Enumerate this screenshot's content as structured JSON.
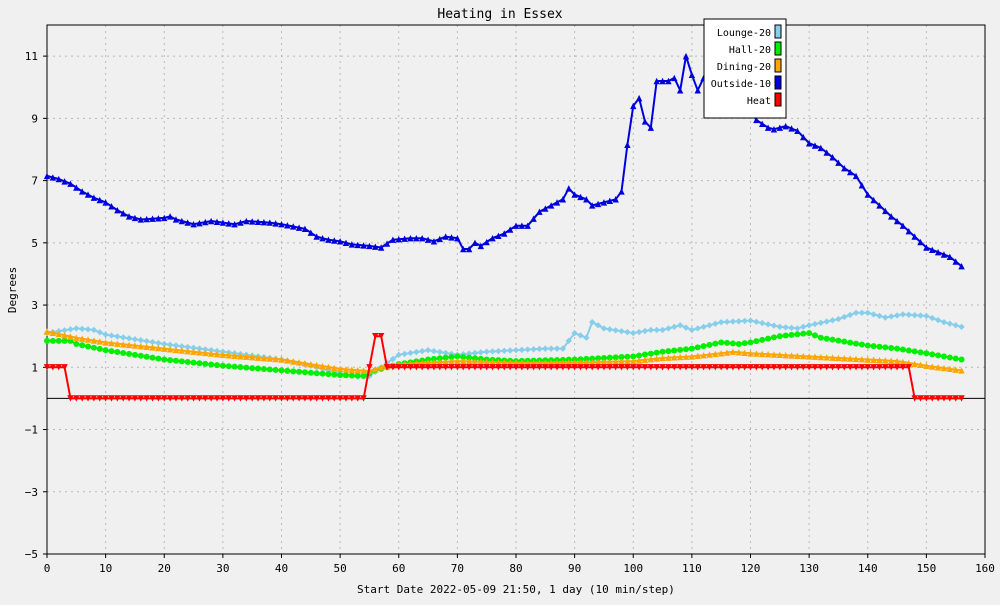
{
  "chart_data": {
    "type": "line",
    "title": "Heating in Essex",
    "xlabel": "Start Date 2022-05-09 21:50, 1 day (10 min/step)",
    "ylabel": "Degrees",
    "xlim": [
      0,
      160
    ],
    "ylim": [
      -5,
      12
    ],
    "x_ticks": [
      0,
      10,
      20,
      30,
      40,
      50,
      60,
      70,
      80,
      90,
      100,
      110,
      120,
      130,
      140,
      150,
      160
    ],
    "y_ticks": [
      -5,
      -3,
      -1,
      1,
      3,
      5,
      7,
      9,
      11
    ],
    "grid": true,
    "legend_position": "top-right",
    "background": "#f0f0f0",
    "series": [
      {
        "name": "Lounge-20",
        "color": "#87ceeb",
        "marker": "diamond",
        "points": [
          [
            0,
            2.1
          ],
          [
            5,
            2.25
          ],
          [
            8,
            2.2
          ],
          [
            10,
            2.05
          ],
          [
            20,
            1.75
          ],
          [
            30,
            1.5
          ],
          [
            40,
            1.25
          ],
          [
            45,
            1.05
          ],
          [
            50,
            0.8
          ],
          [
            53,
            0.7
          ],
          [
            55,
            0.72
          ],
          [
            57,
            1.0
          ],
          [
            60,
            1.4
          ],
          [
            65,
            1.55
          ],
          [
            70,
            1.4
          ],
          [
            75,
            1.5
          ],
          [
            80,
            1.55
          ],
          [
            85,
            1.6
          ],
          [
            88,
            1.6
          ],
          [
            90,
            2.1
          ],
          [
            92,
            1.95
          ],
          [
            93,
            2.45
          ],
          [
            95,
            2.25
          ],
          [
            100,
            2.1
          ],
          [
            103,
            2.2
          ],
          [
            105,
            2.2
          ],
          [
            108,
            2.35
          ],
          [
            110,
            2.2
          ],
          [
            115,
            2.45
          ],
          [
            120,
            2.5
          ],
          [
            125,
            2.3
          ],
          [
            128,
            2.25
          ],
          [
            130,
            2.35
          ],
          [
            135,
            2.55
          ],
          [
            138,
            2.75
          ],
          [
            140,
            2.75
          ],
          [
            143,
            2.6
          ],
          [
            146,
            2.7
          ],
          [
            150,
            2.65
          ],
          [
            153,
            2.45
          ],
          [
            156,
            2.3
          ]
        ]
      },
      {
        "name": "Hall-20",
        "color": "#00ee00",
        "marker": "circle",
        "points": [
          [
            0,
            1.85
          ],
          [
            4,
            1.85
          ],
          [
            5,
            1.75
          ],
          [
            10,
            1.55
          ],
          [
            20,
            1.25
          ],
          [
            30,
            1.05
          ],
          [
            40,
            0.9
          ],
          [
            50,
            0.75
          ],
          [
            54,
            0.72
          ],
          [
            56,
            0.9
          ],
          [
            60,
            1.1
          ],
          [
            65,
            1.25
          ],
          [
            70,
            1.35
          ],
          [
            75,
            1.25
          ],
          [
            80,
            1.2
          ],
          [
            90,
            1.25
          ],
          [
            100,
            1.35
          ],
          [
            105,
            1.5
          ],
          [
            110,
            1.6
          ],
          [
            115,
            1.8
          ],
          [
            118,
            1.75
          ],
          [
            120,
            1.8
          ],
          [
            125,
            2.0
          ],
          [
            130,
            2.1
          ],
          [
            132,
            1.95
          ],
          [
            140,
            1.7
          ],
          [
            145,
            1.6
          ],
          [
            150,
            1.45
          ],
          [
            156,
            1.25
          ]
        ]
      },
      {
        "name": "Dining-20",
        "color": "#ffa500",
        "marker": "triangle-up",
        "points": [
          [
            0,
            2.15
          ],
          [
            5,
            1.95
          ],
          [
            10,
            1.8
          ],
          [
            20,
            1.6
          ],
          [
            30,
            1.4
          ],
          [
            40,
            1.25
          ],
          [
            45,
            1.1
          ],
          [
            50,
            0.95
          ],
          [
            55,
            0.88
          ],
          [
            57,
            1.0
          ],
          [
            60,
            1.1
          ],
          [
            65,
            1.15
          ],
          [
            70,
            1.2
          ],
          [
            80,
            1.15
          ],
          [
            90,
            1.15
          ],
          [
            100,
            1.2
          ],
          [
            105,
            1.3
          ],
          [
            110,
            1.35
          ],
          [
            115,
            1.45
          ],
          [
            117,
            1.5
          ],
          [
            120,
            1.45
          ],
          [
            125,
            1.4
          ],
          [
            130,
            1.35
          ],
          [
            135,
            1.3
          ],
          [
            140,
            1.25
          ],
          [
            145,
            1.2
          ],
          [
            150,
            1.05
          ],
          [
            156,
            0.9
          ]
        ]
      },
      {
        "name": "Outside-10",
        "color": "#0000dd",
        "marker": "triangle-up",
        "points": [
          [
            0,
            7.15
          ],
          [
            2,
            7.05
          ],
          [
            4,
            6.9
          ],
          [
            6,
            6.65
          ],
          [
            8,
            6.45
          ],
          [
            10,
            6.3
          ],
          [
            12,
            6.05
          ],
          [
            14,
            5.85
          ],
          [
            16,
            5.75
          ],
          [
            20,
            5.8
          ],
          [
            21,
            5.85
          ],
          [
            22,
            5.75
          ],
          [
            25,
            5.6
          ],
          [
            28,
            5.7
          ],
          [
            30,
            5.65
          ],
          [
            32,
            5.6
          ],
          [
            34,
            5.7
          ],
          [
            38,
            5.65
          ],
          [
            40,
            5.6
          ],
          [
            44,
            5.45
          ],
          [
            46,
            5.2
          ],
          [
            48,
            5.1
          ],
          [
            50,
            5.05
          ],
          [
            52,
            4.95
          ],
          [
            55,
            4.9
          ],
          [
            57,
            4.85
          ],
          [
            59,
            5.1
          ],
          [
            62,
            5.15
          ],
          [
            64,
            5.15
          ],
          [
            66,
            5.05
          ],
          [
            68,
            5.2
          ],
          [
            70,
            5.15
          ],
          [
            71,
            4.8
          ],
          [
            72,
            4.8
          ],
          [
            73,
            5.0
          ],
          [
            74,
            4.9
          ],
          [
            76,
            5.15
          ],
          [
            78,
            5.3
          ],
          [
            80,
            5.55
          ],
          [
            82,
            5.55
          ],
          [
            84,
            6.0
          ],
          [
            86,
            6.2
          ],
          [
            88,
            6.4
          ],
          [
            89,
            6.75
          ],
          [
            90,
            6.55
          ],
          [
            92,
            6.4
          ],
          [
            93,
            6.2
          ],
          [
            95,
            6.3
          ],
          [
            97,
            6.4
          ],
          [
            98,
            6.65
          ],
          [
            99,
            8.15
          ],
          [
            100,
            9.4
          ],
          [
            101,
            9.65
          ],
          [
            102,
            8.9
          ],
          [
            103,
            8.7
          ],
          [
            104,
            10.2
          ],
          [
            106,
            10.2
          ],
          [
            107,
            10.3
          ],
          [
            108,
            9.9
          ],
          [
            109,
            11.0
          ],
          [
            110,
            10.4
          ],
          [
            111,
            9.9
          ],
          [
            112,
            10.3
          ],
          [
            113,
            9.95
          ],
          [
            114,
            10.2
          ],
          [
            116,
            10.0
          ],
          [
            118,
            9.9
          ],
          [
            120,
            9.25
          ],
          [
            121,
            8.95
          ],
          [
            123,
            8.7
          ],
          [
            124,
            8.65
          ],
          [
            126,
            8.75
          ],
          [
            128,
            8.6
          ],
          [
            130,
            8.2
          ],
          [
            132,
            8.05
          ],
          [
            134,
            7.75
          ],
          [
            136,
            7.4
          ],
          [
            138,
            7.15
          ],
          [
            140,
            6.55
          ],
          [
            142,
            6.2
          ],
          [
            144,
            5.85
          ],
          [
            146,
            5.55
          ],
          [
            148,
            5.2
          ],
          [
            150,
            4.85
          ],
          [
            152,
            4.7
          ],
          [
            154,
            4.55
          ],
          [
            156,
            4.25
          ]
        ]
      },
      {
        "name": "Heat",
        "color": "#ff0000",
        "marker": "triangle-down",
        "points": [
          [
            0,
            1.0
          ],
          [
            3,
            1.0
          ],
          [
            4,
            0.0
          ],
          [
            54,
            0.0
          ],
          [
            55,
            1.0
          ],
          [
            56,
            2.0
          ],
          [
            57,
            2.0
          ],
          [
            58,
            1.0
          ],
          [
            147,
            1.0
          ],
          [
            148,
            0.0
          ],
          [
            156,
            0.0
          ]
        ]
      }
    ]
  }
}
